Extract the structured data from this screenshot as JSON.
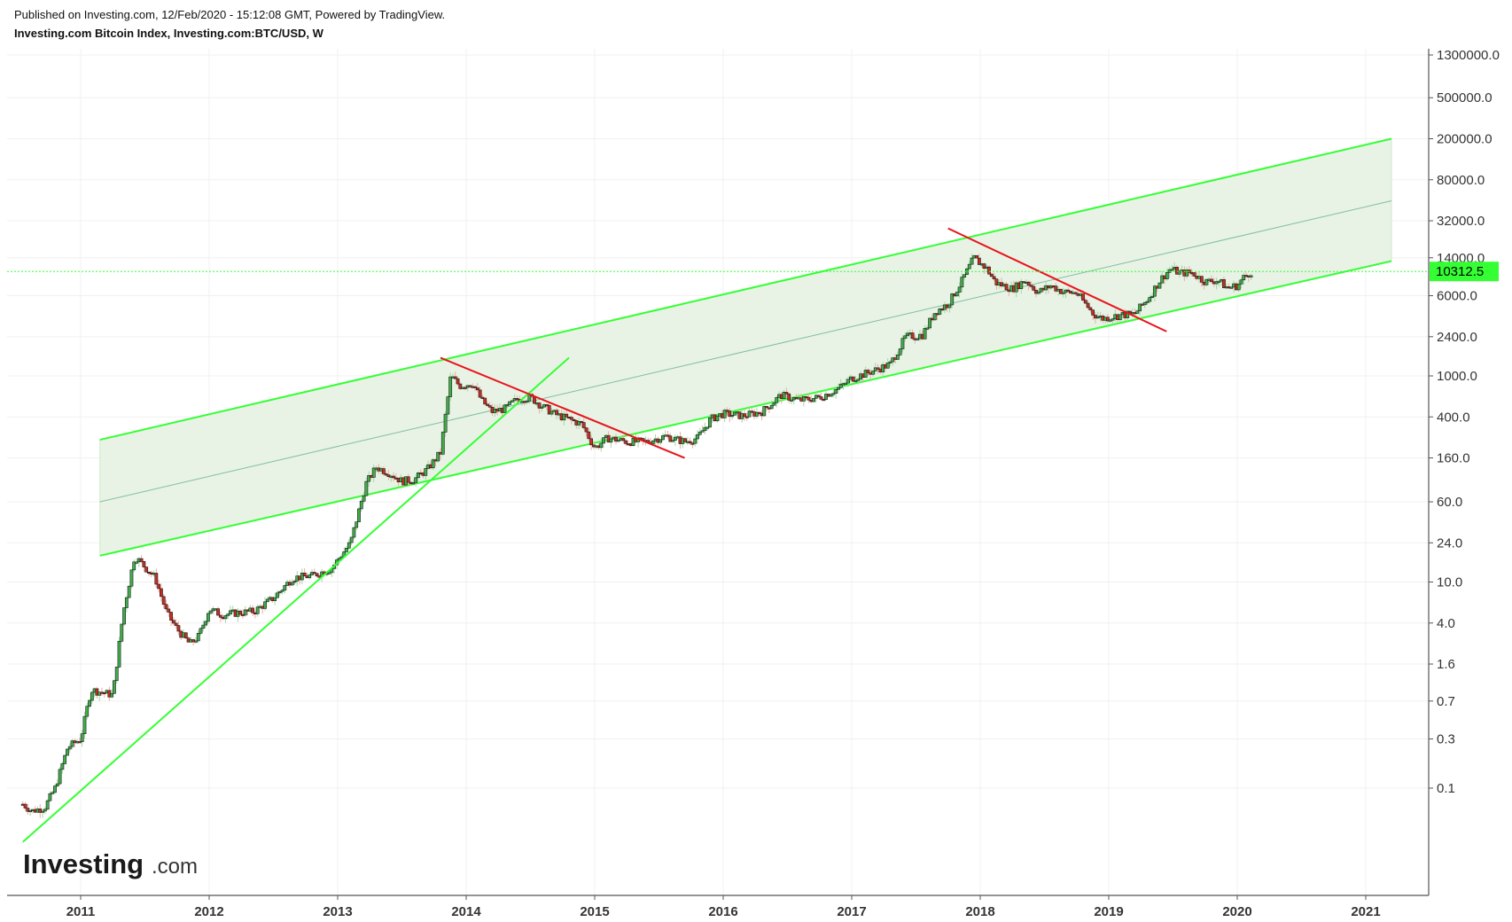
{
  "header": {
    "published": "Published on Investing.com, 12/Feb/2020 - 15:12:08 GMT, Powered by TradingView.",
    "title": "Investing.com Bitcoin Index, Investing.com:BTC/USD, W"
  },
  "logo": {
    "main": "Investing",
    "suffix": ".com"
  },
  "colors": {
    "up_candle": "#3fae49",
    "down_candle": "#c52f22",
    "channel": "#33ff33",
    "channel_fill": "#e8f3e5",
    "midline": "#7fbf9f",
    "resistance": "#e8141b",
    "current_price_line": "#33ff33",
    "grid": "#f0f0f0"
  },
  "chart_data": {
    "type": "candlestick",
    "timeframe": "W",
    "symbol": "Investing.com:BTC/USD",
    "y_scale": "log",
    "x_ticks": [
      "2011",
      "2012",
      "2013",
      "2014",
      "2015",
      "2016",
      "2017",
      "2018",
      "2019",
      "2020",
      "2021"
    ],
    "y_ticks": [
      "0.1",
      "0.3",
      "0.7",
      "1.6",
      "4.0",
      "10.0",
      "24.0",
      "60.0",
      "160.0",
      "400.0",
      "1000.0",
      "2400.0",
      "6000.0",
      "14000.0",
      "32000.0",
      "80000.0",
      "200000.0",
      "500000.0",
      "1300000.0"
    ],
    "current_price": "10312.5",
    "series": [
      {
        "trend": "approximate weekly close (sampled)",
        "points": [
          [
            2010.55,
            0.07
          ],
          [
            2010.62,
            0.06
          ],
          [
            2010.72,
            0.065
          ],
          [
            2010.8,
            0.1
          ],
          [
            2010.9,
            0.25
          ],
          [
            2011.0,
            0.3
          ],
          [
            2011.08,
            0.9
          ],
          [
            2011.17,
            0.85
          ],
          [
            2011.25,
            0.8
          ],
          [
            2011.33,
            5.0
          ],
          [
            2011.42,
            18.0
          ],
          [
            2011.5,
            14.0
          ],
          [
            2011.58,
            11.0
          ],
          [
            2011.67,
            5.0
          ],
          [
            2011.75,
            3.5
          ],
          [
            2011.85,
            2.5
          ],
          [
            2011.92,
            3.0
          ],
          [
            2012.0,
            5.5
          ],
          [
            2012.1,
            4.8
          ],
          [
            2012.2,
            5.0
          ],
          [
            2012.35,
            5.2
          ],
          [
            2012.5,
            7.0
          ],
          [
            2012.65,
            11.0
          ],
          [
            2012.8,
            11.5
          ],
          [
            2012.95,
            13.5
          ],
          [
            2013.1,
            24.0
          ],
          [
            2013.22,
            90.0
          ],
          [
            2013.3,
            130.0
          ],
          [
            2013.4,
            115.0
          ],
          [
            2013.5,
            95.0
          ],
          [
            2013.6,
            100.0
          ],
          [
            2013.7,
            125.0
          ],
          [
            2013.8,
            180.0
          ],
          [
            2013.88,
            1000.0
          ],
          [
            2013.95,
            800.0
          ],
          [
            2014.05,
            850.0
          ],
          [
            2014.12,
            580.0
          ],
          [
            2014.2,
            450.0
          ],
          [
            2014.3,
            480.0
          ],
          [
            2014.4,
            600.0
          ],
          [
            2014.5,
            620.0
          ],
          [
            2014.6,
            500.0
          ],
          [
            2014.7,
            420.0
          ],
          [
            2014.8,
            380.0
          ],
          [
            2014.9,
            340.0
          ],
          [
            2015.0,
            200.0
          ],
          [
            2015.1,
            250.0
          ],
          [
            2015.25,
            230.0
          ],
          [
            2015.4,
            230.0
          ],
          [
            2015.55,
            260.0
          ],
          [
            2015.7,
            230.0
          ],
          [
            2015.8,
            250.0
          ],
          [
            2015.9,
            380.0
          ],
          [
            2016.0,
            430.0
          ],
          [
            2016.15,
            410.0
          ],
          [
            2016.3,
            450.0
          ],
          [
            2016.45,
            650.0
          ],
          [
            2016.6,
            580.0
          ],
          [
            2016.75,
            620.0
          ],
          [
            2016.9,
            760.0
          ],
          [
            2017.0,
            950.0
          ],
          [
            2017.15,
            1100.0
          ],
          [
            2017.3,
            1300.0
          ],
          [
            2017.42,
            2400.0
          ],
          [
            2017.55,
            2500.0
          ],
          [
            2017.65,
            4200.0
          ],
          [
            2017.75,
            5000.0
          ],
          [
            2017.85,
            8000.0
          ],
          [
            2017.95,
            14000.0
          ],
          [
            2018.05,
            11000.0
          ],
          [
            2018.12,
            8000.0
          ],
          [
            2018.25,
            7000.0
          ],
          [
            2018.35,
            8500.0
          ],
          [
            2018.45,
            6500.0
          ],
          [
            2018.55,
            7500.0
          ],
          [
            2018.65,
            6500.0
          ],
          [
            2018.75,
            6400.0
          ],
          [
            2018.88,
            4000.0
          ],
          [
            2018.95,
            3600.0
          ],
          [
            2019.1,
            3900.0
          ],
          [
            2019.2,
            4000.0
          ],
          [
            2019.3,
            5500.0
          ],
          [
            2019.4,
            8500.0
          ],
          [
            2019.48,
            11000.0
          ],
          [
            2019.55,
            10000.0
          ],
          [
            2019.65,
            10000.0
          ],
          [
            2019.75,
            8200.0
          ],
          [
            2019.85,
            8500.0
          ],
          [
            2019.92,
            7200.0
          ],
          [
            2020.0,
            7500.0
          ],
          [
            2020.05,
            9000.0
          ],
          [
            2020.11,
            10312.5
          ]
        ]
      }
    ],
    "drawings": {
      "channel_upper": [
        [
          2011.15,
          240.0
        ],
        [
          2021.2,
          200000.0
        ]
      ],
      "channel_lower": [
        [
          2011.15,
          18.0
        ],
        [
          2021.2,
          13000.0
        ]
      ],
      "channel_mid": [
        [
          2011.15,
          60.0
        ],
        [
          2021.2,
          50000.0
        ]
      ],
      "support_2010_2014": [
        [
          2010.55,
          0.03
        ],
        [
          2014.8,
          1500.0
        ]
      ],
      "resistance_2014": [
        [
          2013.8,
          1500.0
        ],
        [
          2015.7,
          160.0
        ]
      ],
      "resistance_2018": [
        [
          2017.75,
          27000.0
        ],
        [
          2019.45,
          2700.0
        ]
      ]
    }
  }
}
